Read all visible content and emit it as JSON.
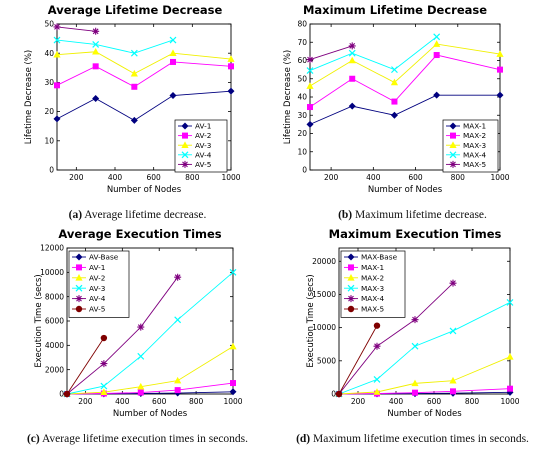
{
  "captions": [
    {
      "tag": "(a)",
      "text": "Average lifetime decrease."
    },
    {
      "tag": "(b)",
      "text": "Maximum lifetime decrease."
    },
    {
      "tag": "(c)",
      "text": "Average lifetime execution times in seconds."
    },
    {
      "tag": "(d)",
      "text": "Maximum lifetime execution times in seconds."
    }
  ],
  "chart_data": [
    {
      "type": "line",
      "title": "Average Lifetime Decrease",
      "xlabel": "Number of Nodes",
      "ylabel": "Lifetime Decrease (%)",
      "xlim": [
        100,
        1000
      ],
      "ylim": [
        0,
        50
      ],
      "xticks": [
        200,
        400,
        600,
        800,
        1000
      ],
      "yticks": [
        0,
        10,
        20,
        30,
        40,
        50
      ],
      "legend": "bottom-right",
      "series": [
        {
          "name": "AV-1",
          "color": "#00007f",
          "marker": "diamond",
          "x": [
            100,
            300,
            500,
            700,
            1000
          ],
          "y": [
            17.5,
            24.5,
            17,
            25.5,
            27
          ]
        },
        {
          "name": "AV-2",
          "color": "#ff00ff",
          "marker": "square",
          "x": [
            100,
            300,
            500,
            700,
            1000
          ],
          "y": [
            29,
            35.5,
            28.5,
            37,
            35.5
          ]
        },
        {
          "name": "AV-3",
          "color": "#ffff00",
          "marker": "triangle",
          "x": [
            100,
            300,
            500,
            700,
            1000
          ],
          "y": [
            39.5,
            40.5,
            33,
            40,
            38
          ]
        },
        {
          "name": "AV-4",
          "color": "#00ffff",
          "marker": "x",
          "x": [
            100,
            300,
            500,
            700
          ],
          "y": [
            44.5,
            43,
            40,
            44.5
          ]
        },
        {
          "name": "AV-5",
          "color": "#7f007f",
          "marker": "star",
          "x": [
            100,
            300
          ],
          "y": [
            49,
            47.5
          ]
        }
      ]
    },
    {
      "type": "line",
      "title": "Maximum Lifetime Decrease",
      "xlabel": "Number of Nodes",
      "ylabel": "Lifetime Decrease (%)",
      "xlim": [
        100,
        1000
      ],
      "ylim": [
        0,
        80
      ],
      "xticks": [
        200,
        400,
        600,
        800,
        1000
      ],
      "yticks": [
        0,
        10,
        20,
        30,
        40,
        50,
        60,
        70,
        80
      ],
      "legend": "bottom-right",
      "series": [
        {
          "name": "MAX-1",
          "color": "#00007f",
          "marker": "diamond",
          "x": [
            100,
            300,
            500,
            700,
            1000
          ],
          "y": [
            25,
            35,
            30,
            41,
            41
          ]
        },
        {
          "name": "MAX-2",
          "color": "#ff00ff",
          "marker": "square",
          "x": [
            100,
            300,
            500,
            700,
            1000
          ],
          "y": [
            34.5,
            50,
            37.5,
            63,
            55
          ]
        },
        {
          "name": "MAX-3",
          "color": "#ffff00",
          "marker": "triangle",
          "x": [
            100,
            300,
            500,
            700,
            1000
          ],
          "y": [
            46,
            60,
            48,
            69,
            63.5
          ]
        },
        {
          "name": "MAX-4",
          "color": "#00ffff",
          "marker": "x",
          "x": [
            100,
            300,
            500,
            700
          ],
          "y": [
            54.5,
            64,
            55,
            73
          ]
        },
        {
          "name": "MAX-5",
          "color": "#7f007f",
          "marker": "star",
          "x": [
            100,
            300
          ],
          "y": [
            60.5,
            68
          ]
        }
      ]
    },
    {
      "type": "line",
      "title": "Average Execution Times",
      "xlabel": "Number of Nodes",
      "ylabel": "Execution Time (secs)",
      "xlim": [
        100,
        1000
      ],
      "ylim": [
        0,
        12000
      ],
      "xticks": [
        200,
        400,
        600,
        800,
        1000
      ],
      "yticks": [
        0,
        2000,
        4000,
        6000,
        8000,
        10000,
        12000
      ],
      "legend": "top-left",
      "series": [
        {
          "name": "AV-Base",
          "color": "#00007f",
          "marker": "diamond",
          "x": [
            100,
            300,
            500,
            700,
            1000
          ],
          "y": [
            0,
            15,
            40,
            80,
            180
          ]
        },
        {
          "name": "AV-1",
          "color": "#ff00ff",
          "marker": "square",
          "x": [
            100,
            300,
            500,
            700,
            1000
          ],
          "y": [
            0,
            40,
            120,
            320,
            900
          ]
        },
        {
          "name": "AV-2",
          "color": "#ffff00",
          "marker": "triangle",
          "x": [
            100,
            300,
            500,
            700,
            1000
          ],
          "y": [
            0,
            150,
            600,
            1100,
            3900
          ]
        },
        {
          "name": "AV-3",
          "color": "#00ffff",
          "marker": "x",
          "x": [
            100,
            300,
            500,
            700,
            1000
          ],
          "y": [
            0,
            650,
            3100,
            6100,
            10000
          ]
        },
        {
          "name": "AV-4",
          "color": "#7f007f",
          "marker": "star",
          "x": [
            100,
            300,
            500,
            700
          ],
          "y": [
            0,
            2500,
            5500,
            9600
          ]
        },
        {
          "name": "AV-5",
          "color": "#7f0000",
          "marker": "circle",
          "x": [
            100,
            300
          ],
          "y": [
            0,
            4600
          ]
        }
      ]
    },
    {
      "type": "line",
      "title": "Maximum Execution Times",
      "xlabel": "Number of Nodes",
      "ylabel": "Execution Time (secs)",
      "xlim": [
        100,
        1000
      ],
      "ylim": [
        0,
        22000
      ],
      "xticks": [
        200,
        400,
        600,
        800,
        1000
      ],
      "yticks": [
        0,
        5000,
        10000,
        15000,
        20000
      ],
      "legend": "top-left",
      "series": [
        {
          "name": "MAX-Base",
          "color": "#00007f",
          "marker": "diamond",
          "x": [
            100,
            300,
            500,
            700,
            1000
          ],
          "y": [
            0,
            20,
            60,
            120,
            250
          ]
        },
        {
          "name": "MAX-1",
          "color": "#ff00ff",
          "marker": "square",
          "x": [
            100,
            300,
            500,
            700,
            1000
          ],
          "y": [
            0,
            60,
            200,
            400,
            800
          ]
        },
        {
          "name": "MAX-2",
          "color": "#ffff00",
          "marker": "triangle",
          "x": [
            100,
            300,
            500,
            700,
            1000
          ],
          "y": [
            0,
            300,
            1600,
            2000,
            5600
          ]
        },
        {
          "name": "MAX-3",
          "color": "#00ffff",
          "marker": "x",
          "x": [
            100,
            300,
            500,
            700,
            1000
          ],
          "y": [
            0,
            2200,
            7200,
            9500,
            13800
          ]
        },
        {
          "name": "MAX-4",
          "color": "#7f007f",
          "marker": "star",
          "x": [
            100,
            300,
            500,
            700
          ],
          "y": [
            0,
            7200,
            11200,
            16700
          ]
        },
        {
          "name": "MAX-5",
          "color": "#7f0000",
          "marker": "circle",
          "x": [
            100,
            300
          ],
          "y": [
            0,
            10300
          ]
        }
      ]
    }
  ]
}
